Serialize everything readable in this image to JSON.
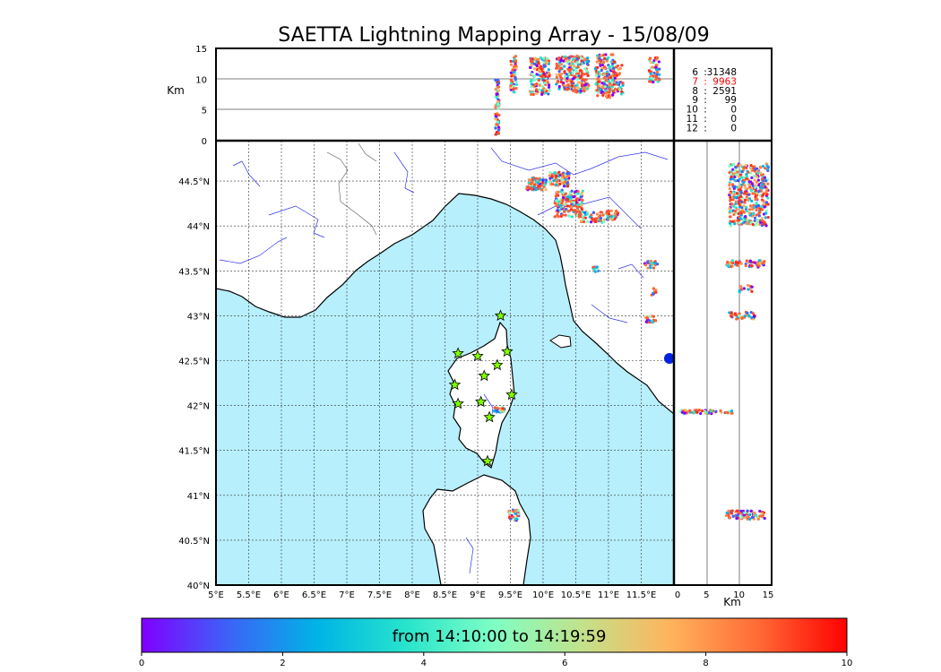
{
  "chart_data": {
    "type": "scatter",
    "title": "SAETTA Lightning Mapping Array - 15/08/09",
    "map": {
      "lon_ticks": [
        "5°E",
        "5.5°E",
        "6°E",
        "6.5°E",
        "7°E",
        "7.5°E",
        "8°E",
        "8.5°E",
        "9°E",
        "9.5°E",
        "10°E",
        "10.5°E",
        "11°E",
        "11.5°E"
      ],
      "lat_ticks": [
        "40°N",
        "40.5°N",
        "41°N",
        "41.5°N",
        "42°N",
        "42.5°N",
        "43°N",
        "43.5°N",
        "44°N",
        "44.5°N"
      ],
      "lon_range": [
        5,
        12
      ],
      "lat_range": [
        40,
        44.95
      ],
      "grid": "dashed",
      "sea_color": "#b7effc",
      "land_color": "#ffffff",
      "stations": [
        {
          "lon": 9.35,
          "lat": 43.0
        },
        {
          "lon": 8.7,
          "lat": 42.58
        },
        {
          "lon": 9.0,
          "lat": 42.55
        },
        {
          "lon": 9.45,
          "lat": 42.6
        },
        {
          "lon": 9.3,
          "lat": 42.45
        },
        {
          "lon": 9.1,
          "lat": 42.33
        },
        {
          "lon": 8.65,
          "lat": 42.23
        },
        {
          "lon": 9.52,
          "lat": 42.12
        },
        {
          "lon": 9.05,
          "lat": 42.04
        },
        {
          "lon": 8.7,
          "lat": 42.02
        },
        {
          "lon": 9.18,
          "lat": 41.87
        },
        {
          "lon": 9.15,
          "lat": 41.38
        }
      ],
      "clusters": [
        {
          "lon": 9.33,
          "lat": 41.95,
          "dlon": 0.08,
          "dlat": 0.03,
          "n": 40
        },
        {
          "lon": 9.9,
          "lat": 44.47,
          "dlon": 0.15,
          "dlat": 0.07,
          "n": 90
        },
        {
          "lon": 10.25,
          "lat": 44.52,
          "dlon": 0.15,
          "dlat": 0.08,
          "n": 80
        },
        {
          "lon": 10.4,
          "lat": 44.25,
          "dlon": 0.22,
          "dlat": 0.15,
          "n": 160
        },
        {
          "lon": 10.75,
          "lat": 44.1,
          "dlon": 0.2,
          "dlat": 0.06,
          "n": 50
        },
        {
          "lon": 11.05,
          "lat": 44.12,
          "dlon": 0.1,
          "dlat": 0.05,
          "n": 30
        },
        {
          "lon": 10.8,
          "lat": 43.52,
          "dlon": 0.04,
          "dlat": 0.03,
          "n": 12
        },
        {
          "lon": 11.65,
          "lat": 43.57,
          "dlon": 0.1,
          "dlat": 0.04,
          "n": 25
        },
        {
          "lon": 11.7,
          "lat": 43.27,
          "dlon": 0.04,
          "dlat": 0.04,
          "n": 10
        },
        {
          "lon": 11.65,
          "lat": 42.96,
          "dlon": 0.08,
          "dlat": 0.04,
          "n": 25
        },
        {
          "lon": 9.55,
          "lat": 40.78,
          "dlon": 0.08,
          "dlat": 0.06,
          "n": 30
        }
      ]
    },
    "alt_lon": {
      "ylabel": "Km",
      "y_ticks": [
        "0",
        "5",
        "10",
        "15"
      ],
      "ylim": [
        0,
        15
      ],
      "clusters": [
        {
          "lon": 9.3,
          "alt": 5.5,
          "dlon": 0.03,
          "dalt": 4.5,
          "n": 70
        },
        {
          "lon": 9.55,
          "alt": 10.8,
          "dlon": 0.05,
          "dalt": 3.0,
          "n": 50
        },
        {
          "lon": 9.95,
          "alt": 10.5,
          "dlon": 0.15,
          "dalt": 3.0,
          "n": 150
        },
        {
          "lon": 10.45,
          "alt": 10.8,
          "dlon": 0.25,
          "dalt": 3.0,
          "n": 220
        },
        {
          "lon": 10.95,
          "alt": 10.5,
          "dlon": 0.15,
          "dalt": 3.5,
          "n": 180
        },
        {
          "lon": 11.15,
          "alt": 10.0,
          "dlon": 0.08,
          "dalt": 2.5,
          "n": 40
        },
        {
          "lon": 11.7,
          "alt": 11.5,
          "dlon": 0.08,
          "dalt": 2.0,
          "n": 50
        }
      ]
    },
    "alt_lat": {
      "xlabel": "Km",
      "x_ticks": [
        "0",
        "5",
        "10",
        "15"
      ],
      "xlim": [
        0,
        15
      ],
      "clusters": [
        {
          "alt": 11.5,
          "lat": 44.35,
          "dalt": 3.0,
          "dlat": 0.35,
          "n": 400
        },
        {
          "alt": 11.0,
          "lat": 43.58,
          "dalt": 3.0,
          "dlat": 0.04,
          "n": 60
        },
        {
          "alt": 11.0,
          "lat": 43.3,
          "dalt": 1.0,
          "dlat": 0.04,
          "n": 12
        },
        {
          "alt": 10.5,
          "lat": 43.0,
          "dalt": 2.0,
          "dlat": 0.04,
          "n": 40
        },
        {
          "alt": 5.0,
          "lat": 41.93,
          "dalt": 4.0,
          "dlat": 0.02,
          "n": 60
        },
        {
          "alt": 11.0,
          "lat": 40.78,
          "dalt": 3.0,
          "dlat": 0.05,
          "n": 80
        }
      ]
    },
    "counts": [
      {
        "label": "6",
        "value": "31348",
        "color": "#000000"
      },
      {
        "label": "7",
        "value": "9963",
        "color": "#ff0000"
      },
      {
        "label": "8",
        "value": "2591",
        "color": "#000000"
      },
      {
        "label": "9",
        "value": "99",
        "color": "#000000"
      },
      {
        "label": "10",
        "value": "0",
        "color": "#000000"
      },
      {
        "label": "11",
        "value": "0",
        "color": "#000000"
      },
      {
        "label": "12",
        "value": "0",
        "color": "#000000"
      }
    ],
    "colorbar": {
      "label": "from 14:10:00 to 14:19:59",
      "ticks": [
        "0",
        "2",
        "4",
        "6",
        "8",
        "10"
      ],
      "range": [
        0,
        10
      ],
      "colors": [
        "#7f00ff",
        "#3b64f7",
        "#00b4e6",
        "#27e4cc",
        "#7ffec4",
        "#c2e28a",
        "#ffb35c",
        "#ff6a35",
        "#ff0000"
      ]
    }
  }
}
